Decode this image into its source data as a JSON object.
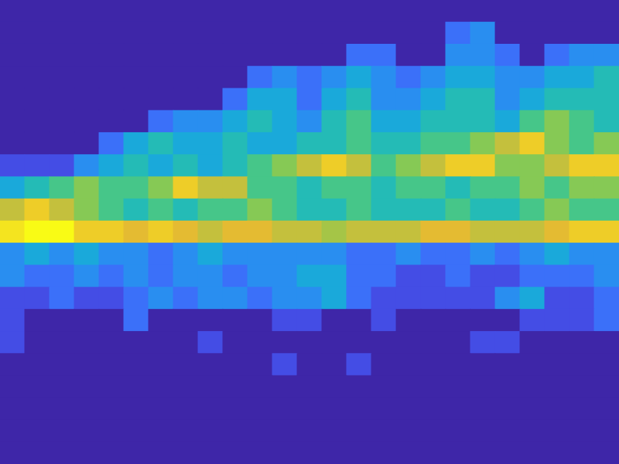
{
  "chart_data": {
    "type": "heatmap",
    "tick_labels": false,
    "grid": false,
    "xlim": [
      0,
      25
    ],
    "ylim": [
      0,
      21
    ],
    "zlim": [
      0,
      10
    ],
    "z": [
      [
        0,
        0,
        0,
        0,
        0,
        0,
        0,
        0,
        0,
        0,
        0,
        0,
        0,
        0,
        0,
        0,
        0,
        0,
        0,
        0,
        0,
        0,
        0,
        0,
        0
      ],
      [
        0,
        0,
        0,
        0,
        0,
        0,
        0,
        0,
        0,
        0,
        0,
        0,
        0,
        0,
        0,
        0,
        0,
        0,
        2,
        3,
        0,
        0,
        0,
        0,
        0
      ],
      [
        0,
        0,
        0,
        0,
        0,
        0,
        0,
        0,
        0,
        0,
        0,
        0,
        0,
        0,
        2,
        2,
        0,
        0,
        3,
        3,
        2,
        0,
        2,
        3,
        3
      ],
      [
        0,
        0,
        0,
        0,
        0,
        0,
        0,
        0,
        0,
        0,
        2,
        3,
        2,
        3,
        4,
        3,
        2,
        3,
        4,
        4,
        3,
        3,
        4,
        4,
        5
      ],
      [
        0,
        0,
        0,
        0,
        0,
        0,
        0,
        0,
        0,
        2,
        4,
        4,
        2,
        4,
        5,
        3,
        3,
        4,
        5,
        5,
        3,
        4,
        5,
        5,
        5
      ],
      [
        0,
        0,
        0,
        0,
        0,
        0,
        2,
        3,
        3,
        4,
        5,
        4,
        3,
        5,
        6,
        4,
        4,
        5,
        5,
        5,
        4,
        6,
        7,
        6,
        5
      ],
      [
        0,
        0,
        0,
        0,
        2,
        4,
        5,
        4,
        4,
        5,
        4,
        4,
        5,
        5,
        6,
        5,
        5,
        6,
        6,
        7,
        8,
        9,
        7,
        6,
        7
      ],
      [
        1,
        1,
        1,
        3,
        4,
        5,
        4,
        5,
        4,
        5,
        6,
        7,
        8,
        9,
        8,
        6,
        7,
        8,
        9,
        9,
        7,
        7,
        8,
        9,
        9
      ],
      [
        4,
        5,
        6,
        7,
        6,
        6,
        7,
        9,
        8,
        8,
        6,
        6,
        5,
        6,
        6,
        5,
        6,
        6,
        5,
        6,
        6,
        7,
        6,
        7,
        7
      ],
      [
        8,
        9,
        8,
        7,
        6,
        5,
        6,
        5,
        6,
        6,
        7,
        6,
        5,
        5,
        6,
        5,
        5,
        5,
        6,
        5,
        5,
        6,
        7,
        6,
        6
      ],
      [
        9.5,
        10,
        10,
        9,
        9,
        8.5,
        9,
        8.5,
        8,
        8.5,
        8.5,
        8,
        8,
        7.5,
        8,
        8,
        8,
        8.5,
        8.5,
        8,
        8,
        8,
        8.5,
        9,
        9
      ],
      [
        3,
        4,
        3,
        4,
        3,
        3,
        2,
        3,
        4,
        3,
        3,
        3,
        3,
        3,
        2,
        2,
        3,
        2,
        2,
        3,
        2,
        3,
        4,
        3,
        3
      ],
      [
        3,
        2,
        2,
        3,
        2,
        3,
        2,
        3,
        3,
        2,
        3,
        3,
        4,
        4,
        2,
        2,
        1,
        1,
        2,
        1,
        1,
        2,
        2,
        2,
        3
      ],
      [
        1,
        1,
        2,
        1,
        1,
        2,
        3,
        2,
        3,
        3,
        2,
        3,
        3,
        4,
        2,
        1,
        1,
        1,
        1,
        1,
        3,
        4,
        1,
        1,
        2
      ],
      [
        1,
        0,
        0,
        0,
        0,
        2,
        0,
        0,
        0,
        0,
        0,
        1,
        1,
        0,
        0,
        1,
        0,
        0,
        0,
        0,
        0,
        1,
        1,
        1,
        2
      ],
      [
        1,
        0,
        0,
        0,
        0,
        0,
        0,
        0,
        1,
        0,
        0,
        0,
        0,
        0,
        0,
        0,
        0,
        0,
        0,
        1,
        1,
        0,
        0,
        0,
        0
      ],
      [
        0,
        0,
        0,
        0,
        0,
        0,
        0,
        0,
        0,
        0,
        0,
        1,
        0,
        0,
        1,
        0,
        0,
        0,
        0,
        0,
        0,
        0,
        0,
        0,
        0
      ],
      [
        0,
        0,
        0,
        0,
        0,
        0,
        0,
        0,
        0,
        0,
        0,
        0,
        0,
        0,
        0,
        0,
        0,
        0,
        0,
        0,
        0,
        0,
        0,
        0,
        0
      ],
      [
        0,
        0,
        0,
        0,
        0,
        0,
        0,
        0,
        0,
        0,
        0,
        0,
        0,
        0,
        0,
        0,
        0,
        0,
        0,
        0,
        0,
        0,
        0,
        0,
        0
      ],
      [
        0,
        0,
        0,
        0,
        0,
        0,
        0,
        0,
        0,
        0,
        0,
        0,
        0,
        0,
        0,
        0,
        0,
        0,
        0,
        0,
        0,
        0,
        0,
        0,
        0
      ],
      [
        0,
        0,
        0,
        0,
        0,
        0,
        0,
        0,
        0,
        0,
        0,
        0,
        0,
        0,
        0,
        0,
        0,
        0,
        0,
        0,
        0,
        0,
        0,
        0,
        0
      ]
    ]
  }
}
